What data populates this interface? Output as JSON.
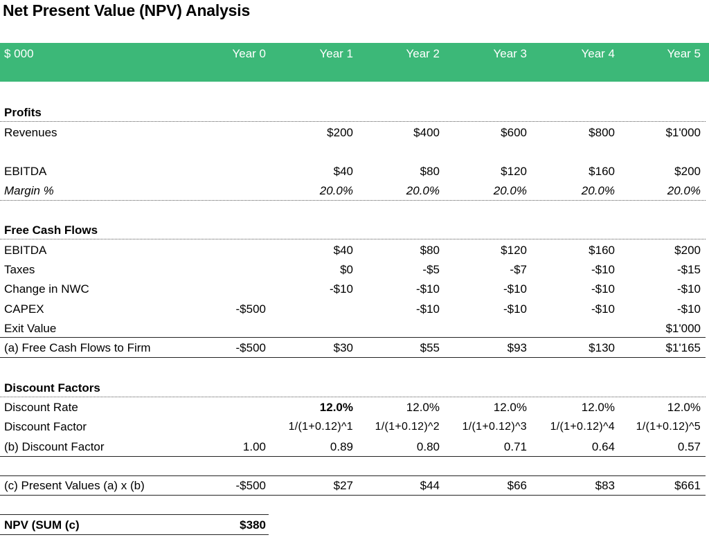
{
  "title": "Net Present Value (NPV) Analysis",
  "header": {
    "unit_label": "$ 000",
    "years": [
      "Year 0",
      "Year 1",
      "Year 2",
      "Year 3",
      "Year 4",
      "Year 5"
    ]
  },
  "colors": {
    "header_band": "#3cb878",
    "header_text": "#ffffff"
  },
  "profits": {
    "section_title": "Profits",
    "revenues": {
      "label": "Revenues",
      "values": [
        "",
        "$200",
        "$400",
        "$600",
        "$800",
        "$1'000"
      ]
    },
    "ebitda": {
      "label": "EBITDA",
      "values": [
        "",
        "$40",
        "$80",
        "$120",
        "$160",
        "$200"
      ]
    },
    "margin": {
      "label": "Margin %",
      "values": [
        "",
        "20.0%",
        "20.0%",
        "20.0%",
        "20.0%",
        "20.0%"
      ]
    }
  },
  "fcf": {
    "section_title": "Free Cash Flows",
    "ebitda": {
      "label": "EBITDA",
      "values": [
        "",
        "$40",
        "$80",
        "$120",
        "$160",
        "$200"
      ]
    },
    "taxes": {
      "label": "Taxes",
      "values": [
        "",
        "$0",
        "-$5",
        "-$7",
        "-$10",
        "-$15"
      ]
    },
    "nwc": {
      "label": "Change in NWC",
      "values": [
        "",
        "-$10",
        "-$10",
        "-$10",
        "-$10",
        "-$10"
      ]
    },
    "capex": {
      "label": "CAPEX",
      "values": [
        "-$500",
        "",
        "-$10",
        "-$10",
        "-$10",
        "-$10"
      ]
    },
    "exit": {
      "label": "Exit Value",
      "values": [
        "",
        "",
        "",
        "",
        "",
        "$1'000"
      ]
    },
    "total": {
      "label": "(a) Free Cash Flows to Firm",
      "values": [
        "-$500",
        "$30",
        "$55",
        "$93",
        "$130",
        "$1'165"
      ]
    }
  },
  "discount": {
    "section_title": "Discount Factors",
    "rate": {
      "label": "Discount Rate",
      "values": [
        "",
        "12.0%",
        "12.0%",
        "12.0%",
        "12.0%",
        "12.0%"
      ]
    },
    "formula": {
      "label": "Discount Factor",
      "values": [
        "",
        "1/(1+0.12)^1",
        "1/(1+0.12)^2",
        "1/(1+0.12)^3",
        "1/(1+0.12)^4",
        "1/(1+0.12)^5"
      ]
    },
    "factor": {
      "label": "(b) Discount Factor",
      "values": [
        "1.00",
        "0.89",
        "0.80",
        "0.71",
        "0.64",
        "0.57"
      ]
    }
  },
  "pv": {
    "label": "(c) Present Values (a) x (b)",
    "values": [
      "-$500",
      "$27",
      "$44",
      "$66",
      "$83",
      "$661"
    ]
  },
  "npv": {
    "label": "NPV (SUM (c)",
    "value": "$380"
  }
}
